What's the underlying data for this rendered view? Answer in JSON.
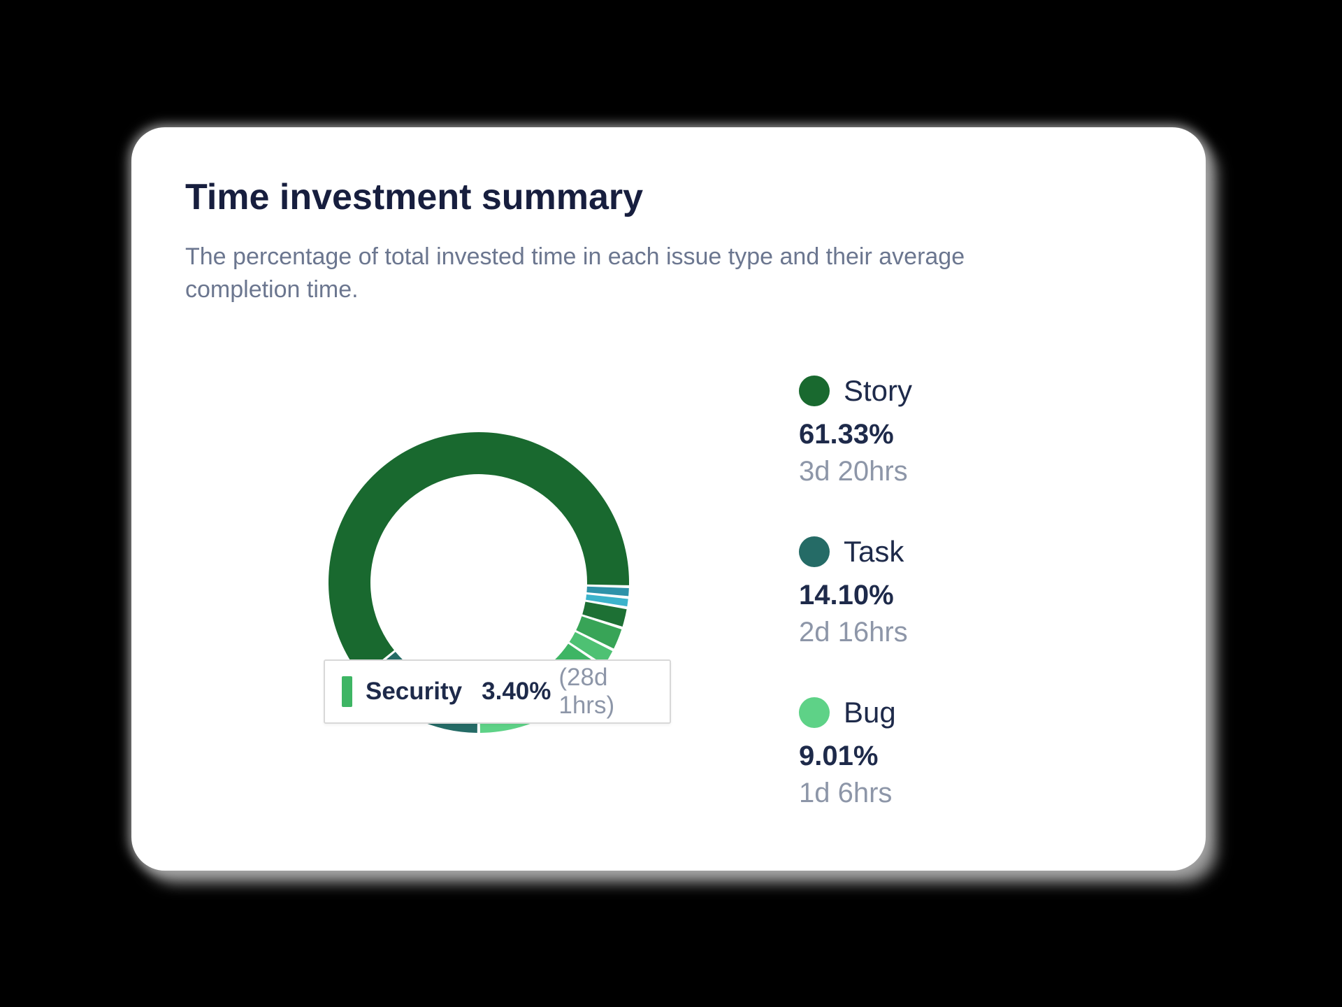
{
  "card": {
    "title": "Time investment summary",
    "subtitle_line1": "The percentage of total invested time in each issue type and their average",
    "subtitle_line2": "completion time.",
    "background": "#ffffff",
    "page_background": "#000000"
  },
  "tooltip": {
    "label": "Security",
    "percent": "3.40%",
    "time": "(28d 1hrs)",
    "chip_color": "#3eb564"
  },
  "legend": [
    {
      "name": "Story",
      "percent": "61.33%",
      "time": "3d 20hrs",
      "color": "#19692f"
    },
    {
      "name": "Task",
      "percent": "14.10%",
      "time": "2d 16hrs",
      "color": "#256b66"
    },
    {
      "name": "Bug",
      "percent": "9.01%",
      "time": "1d 6hrs",
      "color": "#5ed287"
    }
  ],
  "chart_data": {
    "type": "pie",
    "donut": true,
    "title": "Time investment summary",
    "legend_position": "right",
    "direction": "clockwise",
    "start_angle_deg": 230.8,
    "outer_radius": 215,
    "inner_radius": 155,
    "segments": [
      {
        "label": "Story",
        "percent": 61.33,
        "avg_completion": "3d 20hrs",
        "color": "#19692f",
        "estimated": false
      },
      {
        "label": "",
        "percent": 1.15,
        "color": "#2e92a9",
        "estimated": true
      },
      {
        "label": "",
        "percent": 1.1,
        "color": "#3cb3cb",
        "estimated": true
      },
      {
        "label": "",
        "percent": 2.2,
        "color": "#1d7034",
        "estimated": true
      },
      {
        "label": "",
        "percent": 2.5,
        "color": "#38a457",
        "estimated": true
      },
      {
        "label": "",
        "percent": 2.0,
        "color": "#4ec173",
        "estimated": true
      },
      {
        "label": "Security",
        "percent": 3.4,
        "avg_completion": "28d 1hrs",
        "color": "#3eb564",
        "estimated": false
      },
      {
        "label": "",
        "percent": 3.21,
        "color": "#2d8f4e",
        "estimated": true
      },
      {
        "label": "Bug",
        "percent": 9.01,
        "avg_completion": "1d 6hrs",
        "color": "#5ed287",
        "estimated": false
      },
      {
        "label": "Task",
        "percent": 14.1,
        "avg_completion": "2d 16hrs",
        "color": "#256b66",
        "estimated": false
      }
    ]
  }
}
